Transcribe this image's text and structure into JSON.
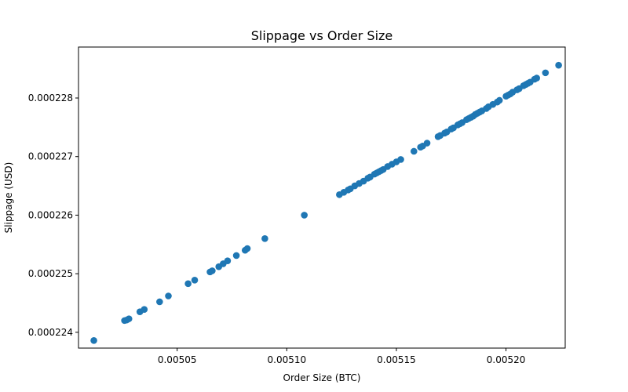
{
  "chart_data": {
    "type": "scatter",
    "title": "Slippage vs Order Size",
    "xlabel": "Order Size (BTC)",
    "ylabel": "Slippage (USD)",
    "xlim": [
      0.005005,
      0.005227
    ],
    "ylim": [
      0.00022373,
      0.00022887
    ],
    "xticks": [
      {
        "value": 0.00505,
        "label": "0.00505"
      },
      {
        "value": 0.0051,
        "label": "0.00510"
      },
      {
        "value": 0.00515,
        "label": "0.00515"
      },
      {
        "value": 0.0052,
        "label": "0.00520"
      }
    ],
    "yticks": [
      {
        "value": 0.000224,
        "label": "0.000224"
      },
      {
        "value": 0.000225,
        "label": "0.000225"
      },
      {
        "value": 0.000226,
        "label": "0.000226"
      },
      {
        "value": 0.000227,
        "label": "0.000227"
      },
      {
        "value": 0.000228,
        "label": "0.000228"
      }
    ],
    "grid": false,
    "series_color": "#1f77b4",
    "x": [
      0.005012,
      0.005026,
      0.005027,
      0.005028,
      0.005033,
      0.005035,
      0.005042,
      0.005046,
      0.005055,
      0.005058,
      0.005065,
      0.005066,
      0.005069,
      0.005071,
      0.005073,
      0.005077,
      0.005081,
      0.005082,
      0.00509,
      0.005108,
      0.005124,
      0.005126,
      0.005128,
      0.005129,
      0.005131,
      0.005133,
      0.005135,
      0.005137,
      0.005138,
      0.00514,
      0.005141,
      0.005142,
      0.005143,
      0.005144,
      0.005146,
      0.005148,
      0.00515,
      0.005152,
      0.005158,
      0.005161,
      0.005162,
      0.005164,
      0.005169,
      0.00517,
      0.005172,
      0.005173,
      0.005175,
      0.005176,
      0.005178,
      0.005179,
      0.00518,
      0.005182,
      0.005183,
      0.005184,
      0.005185,
      0.005186,
      0.005187,
      0.005188,
      0.005189,
      0.005191,
      0.005192,
      0.005194,
      0.005196,
      0.005197,
      0.0052,
      0.005201,
      0.005202,
      0.005203,
      0.005205,
      0.005206,
      0.005208,
      0.005209,
      0.00521,
      0.005211,
      0.005213,
      0.005214,
      0.005218,
      0.005224
    ],
    "y": [
      0.00022386,
      0.0002242,
      0.00022421,
      0.00022423,
      0.00022435,
      0.00022439,
      0.00022452,
      0.00022462,
      0.00022483,
      0.00022489,
      0.00022503,
      0.00022505,
      0.00022512,
      0.00022517,
      0.00022522,
      0.00022531,
      0.0002254,
      0.00022543,
      0.0002256,
      0.000226,
      0.00022635,
      0.00022639,
      0.00022643,
      0.00022645,
      0.0002265,
      0.00022654,
      0.00022658,
      0.00022663,
      0.00022665,
      0.0002267,
      0.00022672,
      0.00022674,
      0.00022676,
      0.00022678,
      0.00022683,
      0.00022687,
      0.00022691,
      0.00022695,
      0.00022709,
      0.00022716,
      0.00022718,
      0.00022723,
      0.00022734,
      0.00022736,
      0.0002274,
      0.00022742,
      0.00022747,
      0.00022749,
      0.00022754,
      0.00022756,
      0.00022758,
      0.00022763,
      0.00022765,
      0.00022767,
      0.00022769,
      0.00022772,
      0.00022774,
      0.00022776,
      0.00022778,
      0.00022782,
      0.00022785,
      0.00022789,
      0.00022793,
      0.00022796,
      0.00022803,
      0.00022805,
      0.00022807,
      0.0002281,
      0.00022814,
      0.00022816,
      0.00022821,
      0.00022823,
      0.00022825,
      0.00022827,
      0.00022832,
      0.00022834,
      0.00022843,
      0.00022856
    ]
  }
}
